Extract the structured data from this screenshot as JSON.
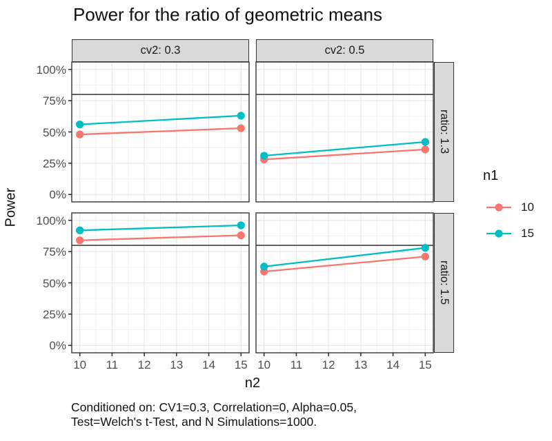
{
  "title": "Power for the ratio of geometric means",
  "axes": {
    "x_label": "n2",
    "y_label": "Power",
    "x_ticks": [
      "10",
      "11",
      "12",
      "13",
      "14",
      "15"
    ],
    "y_ticks": [
      {
        "label": "100%",
        "value": 100
      },
      {
        "label": "75%",
        "value": 75
      },
      {
        "label": "50%",
        "value": 50
      },
      {
        "label": "25%",
        "value": 25
      },
      {
        "label": "0%",
        "value": 0
      }
    ]
  },
  "facets": {
    "columns": [
      "cv2: 0.3",
      "cv2: 0.5"
    ],
    "rows": [
      "ratio: 1.3",
      "ratio: 1.5"
    ]
  },
  "legend": {
    "title": "n1",
    "items": [
      {
        "label": "10",
        "color": "#F8766D"
      },
      {
        "label": "15",
        "color": "#00BFC4"
      }
    ]
  },
  "caption": {
    "line1": "Conditioned on: CV1=0.3, Correlation=0, Alpha=0.05,",
    "line2": "Test=Welch's t-Test, and N Simulations=1000."
  },
  "colors": {
    "series_10": "#F8766D",
    "series_15": "#00BFC4",
    "strip_bg": "#D9D9D9",
    "panel_border": "#333333",
    "grid_major": "#E8E8E8",
    "grid_minor": "#F4F4F4",
    "reference_line": "#595959",
    "tick_text": "#4D4D4D"
  },
  "chart_data": {
    "type": "line",
    "x": [
      10,
      15
    ],
    "xlabel": "n2",
    "ylabel": "Power",
    "x_range": [
      10,
      15
    ],
    "y_range_percent": [
      0,
      100
    ],
    "y_tick_step_percent": 25,
    "reference_line_percent": 80,
    "grid": "major+minor",
    "legend_position": "right",
    "panels": [
      {
        "row": "ratio: 1.3",
        "col": "cv2: 0.3",
        "series": [
          {
            "name": "10",
            "values": [
              48,
              53
            ]
          },
          {
            "name": "15",
            "values": [
              56,
              63
            ]
          }
        ]
      },
      {
        "row": "ratio: 1.3",
        "col": "cv2: 0.5",
        "series": [
          {
            "name": "10",
            "values": [
              28,
              36
            ]
          },
          {
            "name": "15",
            "values": [
              31,
              42
            ]
          }
        ]
      },
      {
        "row": "ratio: 1.5",
        "col": "cv2: 0.3",
        "series": [
          {
            "name": "10",
            "values": [
              84,
              88
            ]
          },
          {
            "name": "15",
            "values": [
              92,
              96
            ]
          }
        ]
      },
      {
        "row": "ratio: 1.5",
        "col": "cv2: 0.5",
        "series": [
          {
            "name": "10",
            "values": [
              59,
              71
            ]
          },
          {
            "name": "15",
            "values": [
              63,
              78
            ]
          }
        ]
      }
    ]
  }
}
